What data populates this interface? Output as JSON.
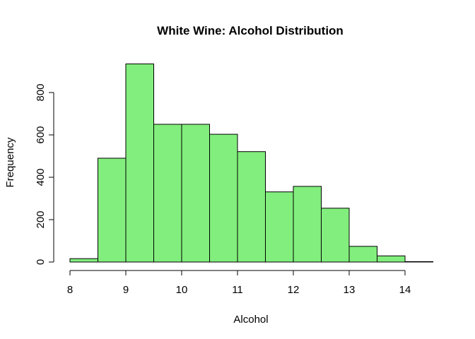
{
  "chart_data": {
    "type": "bar",
    "subtype": "histogram",
    "title": "White Wine: Alcohol Distribution",
    "xlabel": "Alcohol",
    "ylabel": "Frequency",
    "bin_edges": [
      8,
      8.5,
      9,
      9.5,
      10,
      10.5,
      11,
      11.5,
      12,
      12.5,
      13,
      13.5,
      14,
      14.5
    ],
    "values": [
      16,
      490,
      935,
      650,
      650,
      603,
      521,
      331,
      357,
      254,
      74,
      29,
      2
    ],
    "xlim": [
      8,
      14
    ],
    "ylim": [
      0,
      800
    ],
    "x_ticks": [
      8,
      9,
      10,
      11,
      12,
      13,
      14
    ],
    "y_ticks": [
      0,
      200,
      400,
      600,
      800
    ],
    "bar_color": "#82ee7d",
    "border_color": "#000000",
    "grid": false,
    "legend": "none"
  }
}
